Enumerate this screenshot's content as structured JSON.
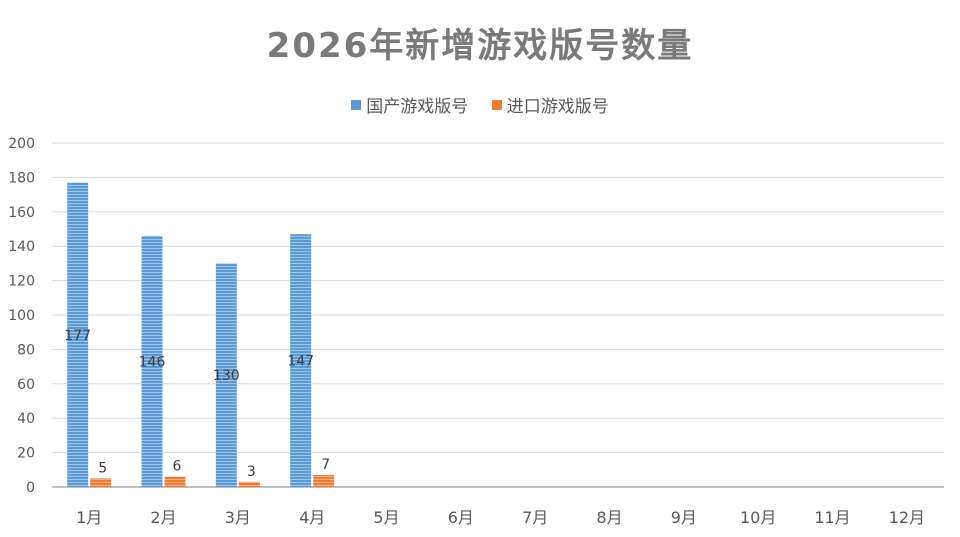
{
  "chart_data": {
    "type": "bar",
    "title": "2026年新增游戏版号数量",
    "xlabel": "",
    "ylabel": "",
    "categories": [
      "1月",
      "2月",
      "3月",
      "4月",
      "5月",
      "6月",
      "7月",
      "8月",
      "9月",
      "10月",
      "11月",
      "12月"
    ],
    "series": [
      {
        "name": "国产游戏版号",
        "color": "#5b9bd5",
        "values": [
          177,
          146,
          130,
          147,
          null,
          null,
          null,
          null,
          null,
          null,
          null,
          null
        ]
      },
      {
        "name": "进口游戏版号",
        "color": "#ed7d31",
        "values": [
          5,
          6,
          3,
          7,
          null,
          null,
          null,
          null,
          null,
          null,
          null,
          null
        ]
      }
    ],
    "ylim": [
      0,
      200
    ],
    "yticks": [
      0,
      20,
      40,
      60,
      80,
      100,
      120,
      140,
      160,
      180,
      200
    ],
    "grid": true,
    "legend_position": "top"
  }
}
